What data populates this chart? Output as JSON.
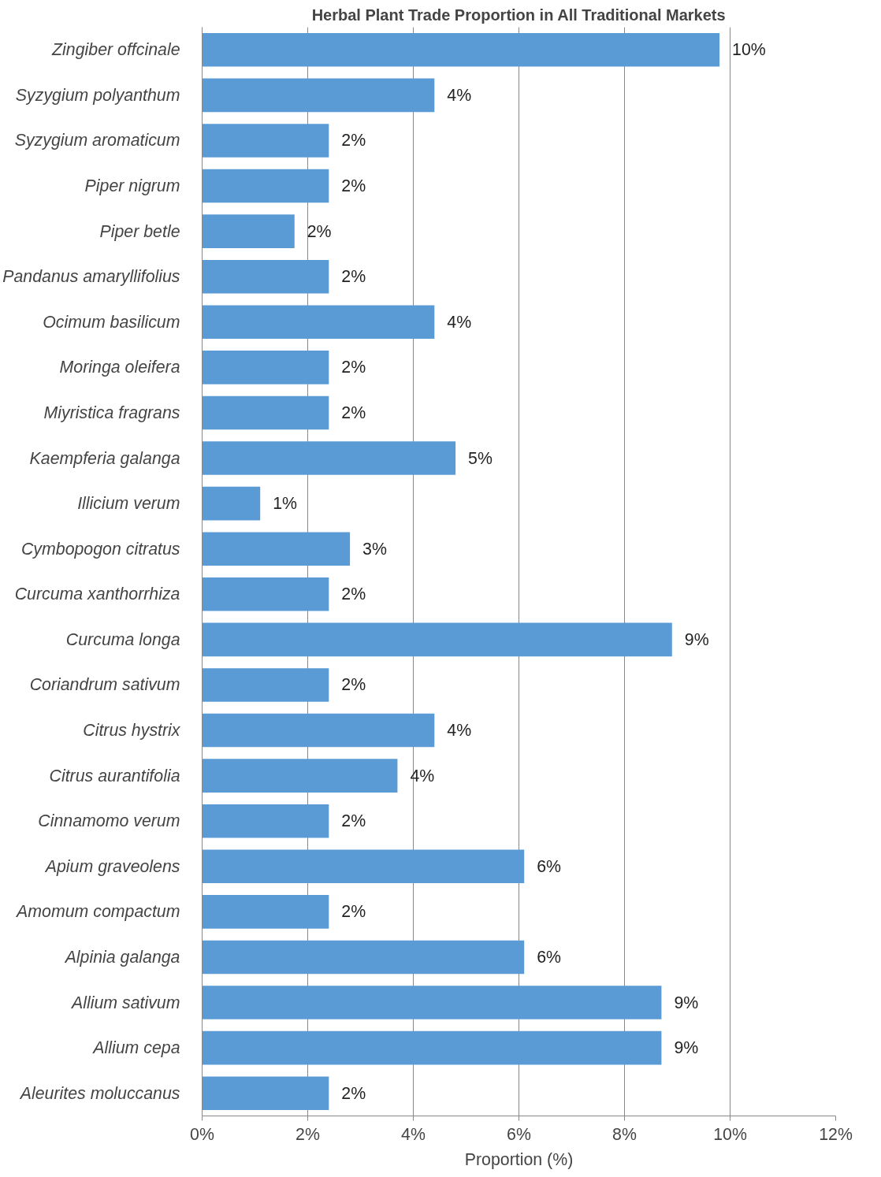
{
  "chart_data": {
    "type": "bar",
    "orientation": "horizontal",
    "title": "Herbal Plant Trade Proportion in All Traditional Markets",
    "xlabel": "Proportion (%)",
    "categories": [
      "Zingiber offcinale",
      "Syzygium polyanthum",
      "Syzygium aromaticum",
      "Piper nigrum",
      "Piper betle",
      "Pandanus amaryllifolius",
      "Ocimum basilicum",
      "Moringa oleifera",
      "Miyristica fragrans",
      "Kaempferia galanga",
      "Illicium verum",
      "Cymbopogon citratus",
      "Curcuma xanthorrhiza",
      "Curcuma longa",
      "Coriandrum sativum",
      "Citrus hystrix",
      "Citrus aurantifolia",
      "Cinnamomo verum",
      "Apium graveolens",
      "Amomum compactum",
      "Alpinia galanga",
      "Allium sativum",
      "Allium cepa",
      "Aleurites moluccanus"
    ],
    "values": [
      9.8,
      4.4,
      2.4,
      2.4,
      1.75,
      2.4,
      4.4,
      2.4,
      2.4,
      4.8,
      1.1,
      2.8,
      2.4,
      8.9,
      2.4,
      4.4,
      3.7,
      2.4,
      6.1,
      2.4,
      6.1,
      8.7,
      8.7,
      2.4
    ],
    "value_labels": [
      "10%",
      "4%",
      "2%",
      "2%",
      "2%",
      "2%",
      "4%",
      "2%",
      "2%",
      "5%",
      "1%",
      "3%",
      "2%",
      "9%",
      "2%",
      "4%",
      "4%",
      "2%",
      "6%",
      "2%",
      "6%",
      "9%",
      "9%",
      "2%"
    ],
    "color": "#5b9bd5",
    "xlim": [
      0,
      12
    ],
    "xticks": [
      {
        "value": 0,
        "label": "0%"
      },
      {
        "value": 2,
        "label": "2%"
      },
      {
        "value": 4,
        "label": "4%"
      },
      {
        "value": 6,
        "label": "6%"
      },
      {
        "value": 8,
        "label": "8%"
      },
      {
        "value": 10,
        "label": "10%"
      },
      {
        "value": 12,
        "label": "12%"
      }
    ],
    "grid": "x"
  }
}
